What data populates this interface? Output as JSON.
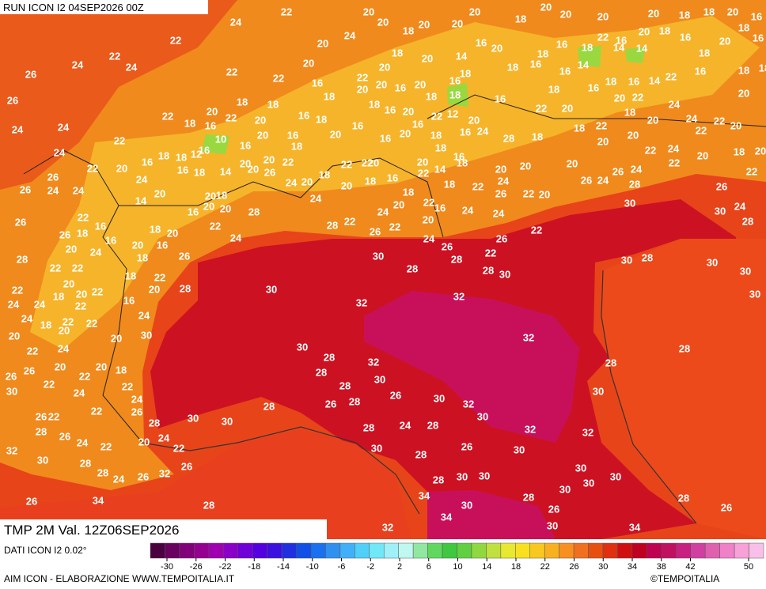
{
  "header": {
    "run": "RUN ICON I2 04SEP2026 00Z",
    "field": "TMP 2M Val. 12Z06SEP2026",
    "source": "DATI ICON I2 0.02°",
    "credit": "AIM ICON - ELABORAZIONE WWW.TEMPOITALIA.IT",
    "copyright": "©TEMPOITALIA"
  },
  "colorbar": {
    "ticks": [
      -30,
      -26,
      -22,
      -18,
      -14,
      -10,
      -6,
      -2,
      2,
      6,
      10,
      14,
      18,
      22,
      26,
      30,
      34,
      38,
      42,
      50
    ],
    "colors": [
      "#4b0040",
      "#6a0060",
      "#82007a",
      "#940090",
      "#a000b0",
      "#8a00c8",
      "#7000d8",
      "#5500e0",
      "#3c10e0",
      "#2030e0",
      "#1050e8",
      "#1a70f0",
      "#3090f0",
      "#40b0f8",
      "#50d0f8",
      "#70e8f8",
      "#a0f0f8",
      "#c0f8f0",
      "#90e8a0",
      "#60d860",
      "#40c840",
      "#60d040",
      "#90d840",
      "#c0e040",
      "#e8e830",
      "#f8e020",
      "#f8c820",
      "#f8b020",
      "#f89020",
      "#f07020",
      "#e85010",
      "#e03010",
      "#d01010",
      "#c00020",
      "#c00050",
      "#c01060",
      "#c82080",
      "#d040a0",
      "#e060b0",
      "#f080c8",
      "#f8a0d8",
      "#f8c0e8"
    ]
  },
  "labels": [
    22,
    20,
    20,
    20,
    20,
    20,
    18,
    18,
    20,
    16,
    24,
    20,
    18,
    20,
    20,
    18,
    20,
    18,
    18,
    22,
    24,
    20,
    16,
    20,
    16,
    22,
    16,
    20,
    16,
    20,
    16,
    22,
    24,
    24,
    20,
    18,
    14,
    18,
    18,
    14,
    14,
    18,
    18,
    18,
    26,
    22,
    22,
    20,
    20,
    22,
    16,
    20,
    16,
    20,
    18,
    18,
    16,
    16,
    14,
    22,
    16,
    18,
    16,
    14,
    26,
    18,
    20,
    18,
    18,
    18,
    16,
    18,
    18,
    16,
    18,
    16,
    20,
    22,
    24,
    20,
    20,
    22,
    22,
    18,
    16,
    20,
    16,
    18,
    16,
    20,
    22,
    12,
    20,
    22,
    20,
    18,
    20,
    24,
    22,
    20,
    24,
    24,
    22,
    16,
    16,
    20,
    20,
    16,
    18,
    16,
    24,
    28,
    18,
    18,
    22,
    20,
    22,
    10,
    16,
    20,
    16,
    12,
    24,
    16,
    18,
    18,
    16,
    20,
    20,
    18,
    20,
    20,
    18,
    16,
    20,
    22,
    24,
    20,
    18,
    20,
    22,
    20,
    24,
    16,
    18,
    14,
    20,
    26,
    22,
    22,
    22,
    22,
    14,
    18,
    20,
    20,
    20,
    26,
    24,
    22,
    22,
    26,
    26,
    24,
    24,
    20,
    18,
    24,
    20,
    18,
    20,
    18,
    16,
    18,
    18,
    22,
    24,
    26,
    22,
    20,
    26,
    24,
    28,
    26,
    14,
    20,
    20,
    16,
    20,
    28,
    24,
    24,
    20,
    22,
    16,
    24,
    24,
    30,
    30,
    24,
    26,
    22,
    16,
    22,
    28,
    22,
    26,
    22,
    20,
    28,
    26,
    18,
    16,
    18,
    20,
    24,
    24,
    26,
    26,
    22,
    28,
    20,
    24,
    20,
    16,
    26,
    18,
    30,
    28,
    22,
    30,
    28,
    30,
    22,
    22,
    18,
    22,
    28,
    28,
    30,
    30,
    22,
    20,
    18,
    20,
    22,
    20,
    28,
    30,
    30,
    24,
    24,
    22,
    16,
    32,
    32,
    24,
    18,
    22,
    22,
    24,
    20,
    20,
    20,
    30,
    32,
    28,
    24,
    22,
    30,
    28,
    32,
    28,
    26,
    26,
    20,
    22,
    20,
    18,
    28,
    30,
    30,
    22,
    24,
    22,
    28,
    26,
    30,
    24,
    28,
    26,
    28,
    30,
    32,
    26,
    22,
    22,
    26,
    30,
    30,
    30,
    28,
    28,
    24,
    28,
    32,
    28,
    26,
    24,
    22,
    20,
    24,
    32,
    32,
    22,
    30,
    28,
    26,
    30,
    30,
    28,
    26,
    30,
    28,
    24,
    26,
    32,
    28,
    30,
    30,
    30,
    30,
    34,
    28,
    30,
    28,
    26,
    34,
    34,
    30,
    26,
    28,
    26,
    32,
    30,
    34
  ]
}
